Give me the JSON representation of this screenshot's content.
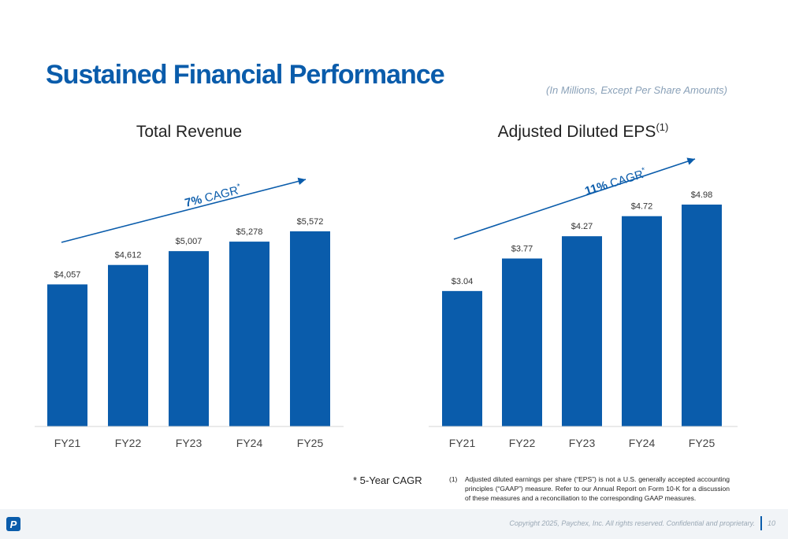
{
  "title": "Sustained Financial Performance",
  "subtitle": "(In Millions, Except Per Share Amounts)",
  "cagr_note": "* 5-Year CAGR",
  "footnote": {
    "marker": "(1)",
    "text": "Adjusted diluted earnings per share (“EPS”) is not a U.S. generally accepted accounting principles (“GAAP”) measure. Refer to our Annual Report on Form 10-K for a discussion of these measures and a reconciliation to the corresponding GAAP measures."
  },
  "footer": {
    "logo": "P",
    "copyright": "Copyright 2025, Paychex, Inc. All rights reserved. Confidential and proprietary.",
    "page": "10"
  },
  "colors": {
    "bar": "#0a5cab",
    "title": "#0a5cab",
    "arrow": "#0a5cab",
    "cagr_text": "#0a5cab"
  },
  "chart_data": [
    {
      "type": "bar",
      "title": "Total Revenue",
      "title_sup": "",
      "categories": [
        "FY21",
        "FY22",
        "FY23",
        "FY24",
        "FY25"
      ],
      "values": [
        4057,
        4612,
        5007,
        5278,
        5572
      ],
      "labels": [
        "$4,057",
        "$4,612",
        "$5,007",
        "$5,278",
        "$5,572"
      ],
      "ylim": [
        0,
        5572
      ],
      "cagr_bold": "7%",
      "cagr_text": " CAGR",
      "cagr_sup": "*"
    },
    {
      "type": "bar",
      "title": "Adjusted Diluted EPS",
      "title_sup": "(1)",
      "categories": [
        "FY21",
        "FY22",
        "FY23",
        "FY24",
        "FY25"
      ],
      "values": [
        3.04,
        3.77,
        4.27,
        4.72,
        4.98
      ],
      "labels": [
        "$3.04",
        "$3.77",
        "$4.27",
        "$4.72",
        "$4.98"
      ],
      "ylim": [
        0,
        4.98
      ],
      "cagr_bold": "11%",
      "cagr_text": " CAGR",
      "cagr_sup": "*"
    }
  ]
}
